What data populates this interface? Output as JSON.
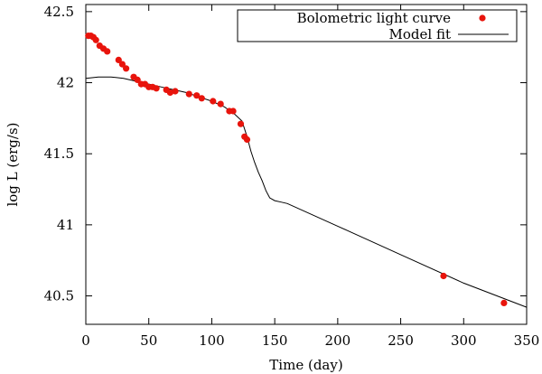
{
  "chart_data": {
    "type": "scatter",
    "title": "",
    "xlabel": "Time (day)",
    "ylabel": "log L (erg/s)",
    "xlim": [
      0,
      350
    ],
    "ylim": [
      40.3,
      42.55
    ],
    "x_ticks": [
      0,
      50,
      100,
      150,
      200,
      250,
      300,
      350
    ],
    "y_ticks": [
      40.5,
      41,
      41.5,
      42,
      42.5
    ],
    "x_tick_labels": [
      "0",
      "50",
      "100",
      "150",
      "200",
      "250",
      "300",
      "350"
    ],
    "y_tick_labels": [
      "40.5",
      "41",
      "41.5",
      "42",
      "42.5"
    ],
    "grid": false,
    "legend_position": "top-right",
    "series": [
      {
        "name": "Bolometric light curve",
        "kind": "points",
        "color": "#e8140c",
        "x": [
          2,
          4,
          6,
          8,
          11,
          14,
          17,
          26,
          29,
          32,
          38,
          41,
          44,
          47,
          50,
          53,
          56,
          64,
          67,
          71,
          82,
          88,
          92,
          101,
          107,
          114,
          117,
          123,
          126,
          128,
          284,
          332
        ],
        "y": [
          42.33,
          42.33,
          42.32,
          42.3,
          42.26,
          42.24,
          42.22,
          42.16,
          42.13,
          42.1,
          42.04,
          42.02,
          41.99,
          41.99,
          41.97,
          41.97,
          41.96,
          41.95,
          41.93,
          41.94,
          41.92,
          41.91,
          41.89,
          41.87,
          41.85,
          41.8,
          41.8,
          41.71,
          41.62,
          41.6,
          40.64,
          40.45
        ]
      },
      {
        "name": "Model fit",
        "kind": "line",
        "color": "#000000",
        "x": [
          0,
          10,
          20,
          30,
          40,
          50,
          60,
          70,
          80,
          90,
          100,
          110,
          118,
          124,
          128,
          131,
          134,
          137,
          140,
          143,
          146,
          150,
          155,
          160,
          200,
          250,
          300,
          350
        ],
        "y": [
          42.03,
          42.04,
          42.04,
          42.03,
          42.01,
          41.99,
          41.97,
          41.95,
          41.93,
          41.9,
          41.87,
          41.83,
          41.78,
          41.73,
          41.62,
          41.52,
          41.44,
          41.37,
          41.31,
          41.24,
          41.19,
          41.17,
          41.16,
          41.15,
          40.99,
          40.79,
          40.59,
          40.42
        ]
      }
    ]
  }
}
